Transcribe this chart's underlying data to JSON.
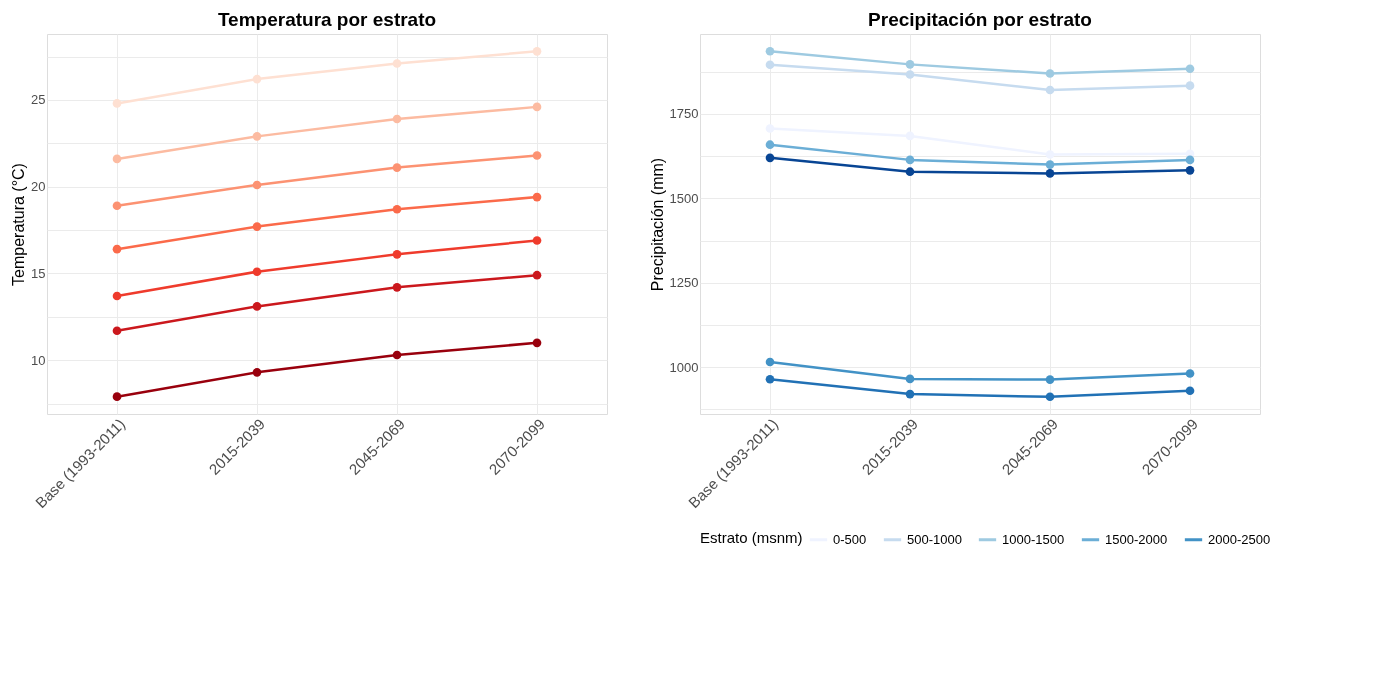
{
  "chart_data": [
    {
      "type": "line",
      "title": "Temperatura por estrato",
      "ylabel": "Temperatura (°C)",
      "categories": [
        "Base (1993-2011)",
        "2015-2039",
        "2045-2069",
        "2070-2099"
      ],
      "ylim": [
        6.9,
        28.8
      ],
      "yticks": [
        {
          "value": 7.5,
          "label": null
        },
        10,
        {
          "value": 12.5,
          "label": null
        },
        15,
        {
          "value": 17.5,
          "label": null
        },
        20,
        {
          "value": 22.5,
          "label": null
        },
        25,
        {
          "value": 27.5,
          "label": null
        }
      ],
      "grid": true,
      "marker": "circle",
      "line_style": "solid",
      "legend": false,
      "series": [
        {
          "color": "#fee0d2",
          "values": [
            24.8,
            26.2,
            27.1,
            27.8
          ]
        },
        {
          "color": "#fcbba1",
          "values": [
            21.6,
            22.9,
            23.9,
            24.6
          ]
        },
        {
          "color": "#fc9272",
          "values": [
            18.9,
            20.1,
            21.1,
            21.8
          ]
        },
        {
          "color": "#fb6a4a",
          "values": [
            16.4,
            17.7,
            18.7,
            19.4
          ]
        },
        {
          "color": "#ef3b2c",
          "values": [
            13.7,
            15.1,
            16.1,
            16.9
          ]
        },
        {
          "color": "#cb181d",
          "values": [
            11.7,
            13.1,
            14.2,
            14.9
          ]
        },
        {
          "color": "#99000d",
          "values": [
            7.9,
            9.3,
            10.3,
            11.0
          ]
        }
      ]
    },
    {
      "type": "line",
      "title": "Precipitación por estrato",
      "ylabel": "Precipitación (mm)",
      "categories": [
        "Base (1993-2011)",
        "2015-2039",
        "2045-2069",
        "2070-2099"
      ],
      "ylim": [
        861,
        1987
      ],
      "yticks": [
        {
          "value": 875,
          "label": null
        },
        1000,
        {
          "value": 1125,
          "label": null
        },
        1250,
        {
          "value": 1375,
          "label": null
        },
        1500,
        {
          "value": 1625,
          "label": null
        },
        1750,
        {
          "value": 1875,
          "label": null
        }
      ],
      "grid": true,
      "marker": "circle",
      "line_style": "solid",
      "legend": "bottom",
      "legend_title": "Estrato (msnm)",
      "series": [
        {
          "name": "0-500",
          "color": "#eff3ff",
          "values": [
            1707,
            1685,
            1630,
            1632
          ]
        },
        {
          "name": "500-1000",
          "color": "#c6dbef",
          "values": [
            1896,
            1867,
            1821,
            1834
          ]
        },
        {
          "name": "1000-1500",
          "color": "#9ecae1",
          "values": [
            1936,
            1897,
            1870,
            1884
          ]
        },
        {
          "name": "1500-2000",
          "color": "#6baed6",
          "values": [
            1659,
            1614,
            1600,
            1614
          ]
        },
        {
          "name": "2000-2500",
          "color": "#4292c6",
          "values": [
            1015,
            965,
            963,
            981
          ]
        },
        {
          "color": "#2171b5",
          "values": [
            964,
            920,
            912,
            930
          ]
        },
        {
          "color": "#084594",
          "values": [
            1620,
            1579,
            1574,
            1583
          ]
        }
      ]
    }
  ]
}
